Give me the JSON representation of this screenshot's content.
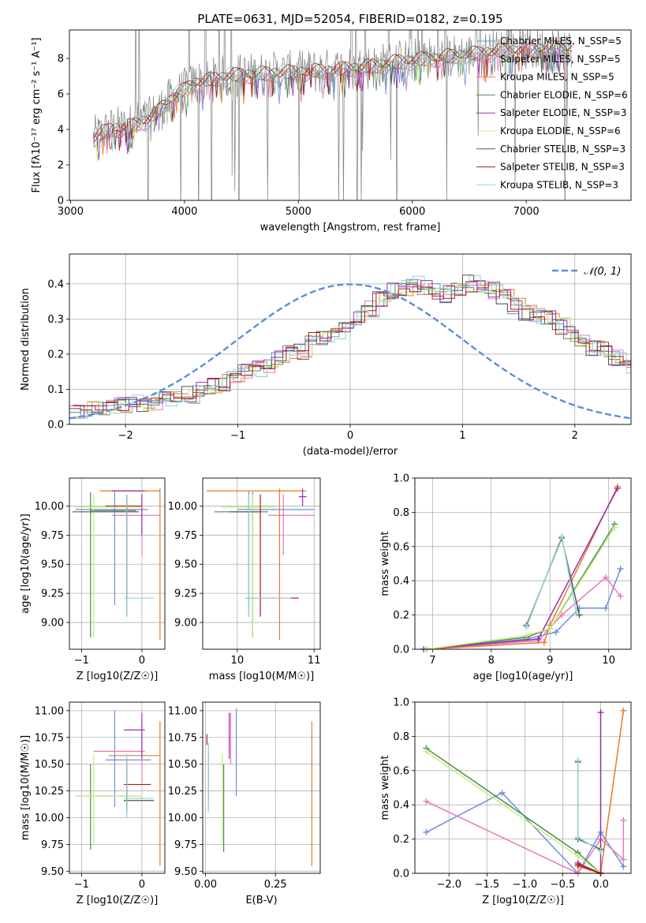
{
  "colors": {
    "Chabrier MILES": "#6d8fde",
    "Salpeter MILES": "#e879b9",
    "Kroupa MILES": "#e87c29",
    "Chabrier ELODIE": "#4f8a55",
    "Salpeter ELODIE": "#9a2cb2",
    "Kroupa ELODIE": "#c6f078",
    "Chabrier STELIB": "#555555",
    "Salpeter STELIB": "#b01818",
    "Kroupa STELIB": "#8fd6d3",
    "gauss": "#5b8fd9",
    "grid": "#b0b0b0",
    "flux_data": "#808080"
  },
  "chart_data": [
    {
      "type": "line",
      "title": "PLATE=0631, MJD=52054, FIBERID=0182, z=0.195",
      "xlabel": "wavelength [Angstrom, rest frame]",
      "ylabel": "Flux [fλ10⁻¹⁷ erg cm⁻² s⁻¹ A⁻¹]",
      "xlim": [
        2990,
        7920
      ],
      "ylim": [
        0,
        9.6
      ],
      "xticks": [
        3000,
        4000,
        5000,
        6000,
        7000
      ],
      "yticks": [
        0,
        2,
        4,
        6,
        8
      ],
      "legend": "top-right",
      "legend_entries": [
        "Chabrier MILES, N_SSP=5",
        "Salpeter MILES, N_SSP=5",
        "Kroupa MILES, N_SSP=5",
        "Chabrier ELODIE, N_SSP=6",
        "Salpeter ELODIE, N_SSP=3",
        "Kroupa ELODIE, N_SSP=6",
        "Chabrier STELIB, N_SSP=3",
        "Salpeter STELIB, N_SSP=3",
        "Kroupa STELIB, N_SSP=3"
      ],
      "continuum": {
        "x": [
          3200,
          3350,
          3500,
          3700,
          3900,
          4100,
          4400,
          4700,
          5000,
          5300,
          5600,
          5900,
          6200,
          6500,
          6800,
          7100,
          7400
        ],
        "y": [
          3.5,
          4.0,
          4.1,
          4.6,
          5.8,
          6.6,
          7.0,
          7.1,
          7.2,
          7.3,
          7.5,
          7.8,
          8.0,
          8.2,
          8.4,
          8.5,
          8.6
        ]
      }
    },
    {
      "type": "histogram",
      "xlabel": "(data-model)/error",
      "ylabel": "Normed distribution",
      "xlim": [
        -2.5,
        2.5
      ],
      "ylim": [
        0,
        0.485
      ],
      "xticks": [
        -2,
        -1,
        0,
        1,
        2
      ],
      "yticks": [
        0.0,
        0.1,
        0.2,
        0.3,
        0.4
      ],
      "legend": "top-right",
      "gauss_label": "𝒩(0, 1)",
      "bin_width": 0.1,
      "base": [
        0.04,
        0.04,
        0.05,
        0.05,
        0.055,
        0.06,
        0.06,
        0.065,
        0.07,
        0.08,
        0.085,
        0.1,
        0.11,
        0.12,
        0.14,
        0.15,
        0.16,
        0.17,
        0.19,
        0.2,
        0.21,
        0.24,
        0.25,
        0.26,
        0.28,
        0.3,
        0.33,
        0.36,
        0.38,
        0.39,
        0.4,
        0.39,
        0.38,
        0.37,
        0.38,
        0.4,
        0.39,
        0.38,
        0.36,
        0.34,
        0.32,
        0.31,
        0.3,
        0.28,
        0.26,
        0.24,
        0.22,
        0.21,
        0.19,
        0.17,
        0.16,
        0.15,
        0.13,
        0.12,
        0.11,
        0.1,
        0.095,
        0.08,
        0.07,
        0.06,
        0.05,
        0.045,
        0.04,
        0.035,
        0.03
      ]
    },
    {
      "type": "scatter",
      "xlabel": "Z [log10(Z/Z☉)]",
      "ylabel": "age  [log10(age/yr)]",
      "xlim": [
        -1.2,
        0.38
      ],
      "ylim": [
        8.77,
        10.24
      ],
      "xticks": [
        -1,
        0
      ],
      "yticks": [
        9.0,
        9.25,
        9.5,
        9.75,
        10.0
      ],
      "error_bars": [
        {
          "series": "Chabrier MILES",
          "x": [
            -1.1,
            0.1
          ],
          "y": [
            9.97,
            9.97
          ],
          "vx": -0.45,
          "vy": [
            9.15,
            10.13
          ]
        },
        {
          "series": "Salpeter MILES",
          "x": [
            -0.5,
            0.3
          ],
          "y": [
            9.92,
            9.92
          ],
          "vx": 0.0,
          "vy": [
            9.58,
            10.1
          ]
        },
        {
          "series": "Kroupa MILES",
          "x": [
            -0.7,
            0.3
          ],
          "y": [
            10.13,
            10.13
          ],
          "vx": 0.3,
          "vy": [
            8.85,
            10.15
          ]
        },
        {
          "series": "Chabrier ELODIE",
          "x": [
            -0.85,
            -0.1
          ],
          "y": [
            9.96,
            9.96
          ],
          "vx": -0.85,
          "vy": [
            8.87,
            10.12
          ]
        },
        {
          "series": "Salpeter ELODIE",
          "x": [
            -0.5,
            0.05
          ],
          "y": [
            10.13,
            10.13
          ],
          "vx": 0.0,
          "vy": [
            9.75,
            10.1
          ]
        },
        {
          "series": "Kroupa ELODIE",
          "x": [
            -1.1,
            0.0
          ],
          "y": [
            9.99,
            9.99
          ],
          "vx": -0.8,
          "vy": [
            8.87,
            10.1
          ]
        },
        {
          "series": "Chabrier STELIB",
          "x": [
            -1.15,
            -0.05
          ],
          "y": [
            9.95,
            9.95
          ],
          "vx": -0.25,
          "vy": [
            9.05,
            10.1
          ]
        },
        {
          "series": "Salpeter STELIB",
          "x": [
            -0.6,
            0.0
          ],
          "y": [
            10.0,
            10.0
          ],
          "vx": -0.25,
          "vy": [
            9.2,
            10.08
          ]
        },
        {
          "series": "Kroupa STELIB",
          "x": [
            -0.3,
            0.2
          ],
          "y": [
            9.21,
            9.21
          ],
          "vx": -0.25,
          "vy": [
            9.05,
            10.1
          ]
        }
      ]
    },
    {
      "type": "scatter",
      "xlabel": "mass [log10(M/M☉)]",
      "ylabel": "",
      "xlim": [
        9.55,
        11.08
      ],
      "ylim": [
        8.77,
        10.24
      ],
      "xticks": [
        10,
        11
      ],
      "yticks": [
        9.0,
        9.25,
        9.5,
        9.75,
        10.0
      ],
      "error_bars": [
        {
          "series": "Chabrier MILES",
          "x": [
            10.0,
            11.0
          ],
          "y": [
            9.97,
            9.97
          ],
          "vx": 10.15,
          "vy": [
            9.15,
            10.13
          ]
        },
        {
          "series": "Salpeter MILES",
          "x": [
            10.4,
            11.0
          ],
          "y": [
            9.92,
            9.92
          ],
          "vx": 10.6,
          "vy": [
            9.58,
            10.1
          ]
        },
        {
          "series": "Kroupa MILES",
          "x": [
            9.6,
            10.9
          ],
          "y": [
            10.13,
            10.13
          ],
          "vx": 10.55,
          "vy": [
            8.85,
            10.15
          ]
        },
        {
          "series": "Chabrier ELODIE",
          "x": [
            9.7,
            10.4
          ],
          "y": [
            9.95,
            9.95
          ],
          "vx": 10.2,
          "vy": [
            8.87,
            10.12
          ]
        },
        {
          "series": "Salpeter ELODIE",
          "x": [
            10.8,
            10.9
          ],
          "y": [
            10.08,
            10.08
          ],
          "vx": 10.85,
          "vy": [
            10.0,
            10.15
          ]
        },
        {
          "series": "Kroupa ELODIE",
          "x": [
            9.8,
            10.5
          ],
          "y": [
            9.99,
            9.99
          ],
          "vx": 10.2,
          "vy": [
            8.87,
            10.1
          ]
        },
        {
          "series": "Chabrier STELIB",
          "x": [
            9.9,
            10.3
          ],
          "y": [
            9.95,
            9.95
          ],
          "vx": 10.15,
          "vy": [
            9.05,
            10.1
          ]
        },
        {
          "series": "Salpeter STELIB",
          "x": [
            10.1,
            10.8
          ],
          "y": [
            9.21,
            9.21
          ],
          "vx": 10.3,
          "vy": [
            9.05,
            10.1
          ]
        },
        {
          "series": "Kroupa STELIB",
          "x": [
            10.1,
            10.7
          ],
          "y": [
            9.21,
            9.21
          ],
          "vx": 10.15,
          "vy": [
            9.05,
            10.1
          ]
        }
      ]
    },
    {
      "type": "line",
      "xlabel": "age  [log10(age/yr)]",
      "ylabel": "mass weight",
      "xlim": [
        6.7,
        10.38
      ],
      "ylim": [
        0,
        1.0
      ],
      "xticks": [
        7,
        8,
        9,
        10
      ],
      "yticks": [
        0.0,
        0.2,
        0.4,
        0.6,
        0.8,
        1.0
      ],
      "series": [
        {
          "name": "Chabrier MILES",
          "x": [
            6.9,
            8.6,
            9.1,
            9.5,
            9.95,
            10.2
          ],
          "y": [
            0.0,
            0.06,
            0.1,
            0.24,
            0.24,
            0.47
          ]
        },
        {
          "name": "Salpeter MILES",
          "x": [
            6.9,
            8.8,
            9.2,
            9.95,
            10.2
          ],
          "y": [
            0.0,
            0.05,
            0.2,
            0.42,
            0.31
          ]
        },
        {
          "name": "Kroupa MILES",
          "x": [
            6.9,
            8.9,
            9.0,
            10.15
          ],
          "y": [
            0.0,
            0.04,
            0.14,
            0.95
          ]
        },
        {
          "name": "Chabrier ELODIE",
          "x": [
            6.9,
            8.6,
            9.0,
            10.1
          ],
          "y": [
            0.0,
            0.07,
            0.12,
            0.73
          ]
        },
        {
          "name": "Salpeter ELODIE",
          "x": [
            6.85,
            8.8,
            10.15
          ],
          "y": [
            0.0,
            0.06,
            0.94
          ]
        },
        {
          "name": "Kroupa ELODIE",
          "x": [
            6.9,
            8.6,
            9.0,
            10.1
          ],
          "y": [
            0.0,
            0.08,
            0.12,
            0.71
          ]
        },
        {
          "name": "Chabrier STELIB",
          "x": [
            8.6,
            9.2,
            9.5
          ],
          "y": [
            0.14,
            0.65,
            0.2
          ]
        },
        {
          "name": "Kroupa STELIB",
          "x": [
            8.6,
            9.2,
            9.45
          ],
          "y": [
            0.13,
            0.66,
            0.21
          ]
        }
      ]
    },
    {
      "type": "scatter",
      "xlabel": "Z [log10(Z/Z☉)]",
      "ylabel": "mass [log10(M/M☉)]",
      "xlim": [
        -1.2,
        0.38
      ],
      "ylim": [
        9.48,
        11.08
      ],
      "xticks": [
        -1,
        0
      ],
      "yticks": [
        9.5,
        9.75,
        10.0,
        10.25,
        10.5,
        10.75,
        11.0
      ],
      "error_bars": [
        {
          "series": "Chabrier MILES",
          "x": [
            -0.6,
            0.15
          ],
          "y": [
            10.54,
            10.54
          ],
          "vx": -0.45,
          "vy": [
            10.1,
            11.0
          ]
        },
        {
          "series": "Salpeter MILES",
          "x": [
            -0.8,
            0.05
          ],
          "y": [
            10.62,
            10.62
          ],
          "vx": 0.0,
          "vy": [
            10.33,
            10.9
          ]
        },
        {
          "series": "Kroupa MILES",
          "x": [
            -0.55,
            0.3
          ],
          "y": [
            10.58,
            10.58
          ],
          "vx": 0.3,
          "vy": [
            9.55,
            10.9
          ]
        },
        {
          "series": "Chabrier ELODIE",
          "x": [
            -1.1,
            -0.1
          ],
          "y": [
            10.2,
            10.2
          ],
          "vx": -0.85,
          "vy": [
            9.7,
            10.5
          ]
        },
        {
          "series": "Salpeter ELODIE",
          "x": [
            -0.3,
            0.05
          ],
          "y": [
            10.82,
            10.82
          ],
          "vx": 0.0,
          "vy": [
            10.55,
            10.98
          ]
        },
        {
          "series": "Kroupa ELODIE",
          "x": [
            -1.1,
            0.0
          ],
          "y": [
            10.2,
            10.2
          ],
          "vx": -0.8,
          "vy": [
            9.75,
            10.6
          ]
        },
        {
          "series": "Chabrier STELIB",
          "x": [
            -0.3,
            0.2
          ],
          "y": [
            10.16,
            10.16
          ],
          "vx": -0.25,
          "vy": [
            10.1,
            10.5
          ]
        },
        {
          "series": "Salpeter STELIB",
          "x": [
            -0.3,
            0.15
          ],
          "y": [
            10.31,
            10.31
          ],
          "vx": -0.25,
          "vy": [
            10.05,
            10.55
          ]
        },
        {
          "series": "Kroupa STELIB",
          "x": [
            -0.3,
            0.2
          ],
          "y": [
            10.18,
            10.18
          ],
          "vx": -0.25,
          "vy": [
            10.0,
            10.6
          ]
        }
      ]
    },
    {
      "type": "scatter",
      "xlabel": "E(B-V)",
      "ylabel": "",
      "xlim": [
        -0.01,
        0.41
      ],
      "ylim": [
        9.48,
        11.08
      ],
      "xticks": [
        0.0,
        0.25
      ],
      "yticks": [
        9.5,
        9.75,
        10.0,
        10.25,
        10.5,
        10.75,
        11.0
      ],
      "error_bars": [
        {
          "series": "Chabrier MILES",
          "vx": 0.11,
          "vy": [
            10.2,
            11.02
          ]
        },
        {
          "series": "Salpeter MILES",
          "vx": 0.09,
          "vy": [
            10.5,
            10.98
          ]
        },
        {
          "series": "Kroupa MILES",
          "vx": 0.38,
          "vy": [
            9.55,
            10.9
          ]
        },
        {
          "series": "Chabrier ELODIE",
          "vx": 0.065,
          "vy": [
            9.68,
            10.5
          ]
        },
        {
          "series": "Salpeter ELODIE",
          "vx": 0.085,
          "vy": [
            10.55,
            10.98
          ]
        },
        {
          "series": "Kroupa ELODIE",
          "vx": 0.06,
          "vy": [
            9.75,
            10.6
          ]
        },
        {
          "series": "Chabrier STELIB",
          "vx": 0.01,
          "vy": [
            10.1,
            10.7
          ]
        },
        {
          "series": "Salpeter STELIB",
          "vx": 0.005,
          "vy": [
            10.68,
            10.78
          ]
        },
        {
          "series": "Kroupa STELIB",
          "vx": 0.01,
          "vy": [
            10.05,
            10.7
          ]
        }
      ]
    },
    {
      "type": "line",
      "xlabel": "Z [log10(Z/Z☉)]",
      "ylabel": "mass weight",
      "xlim": [
        -2.45,
        0.4
      ],
      "ylim": [
        0,
        1.0
      ],
      "xticks": [
        -2.0,
        -1.5,
        -1.0,
        -0.5,
        0.0,
        0.5
      ],
      "yticks": [
        0.0,
        0.2,
        0.4,
        0.6,
        0.8,
        1.0
      ],
      "series": [
        {
          "name": "Chabrier MILES",
          "x": [
            -2.3,
            -1.3,
            -0.3,
            0.0,
            0.3
          ],
          "y": [
            0.24,
            0.47,
            0.0,
            0.24,
            0.04
          ]
        },
        {
          "name": "Salpeter MILES",
          "x": [
            -2.3,
            -0.3,
            0.0,
            0.3,
            0.3
          ],
          "y": [
            0.42,
            0.0,
            0.2,
            0.08,
            0.31
          ]
        },
        {
          "name": "Kroupa MILES",
          "x": [
            -0.3,
            0.0,
            0.3
          ],
          "y": [
            0.04,
            0.0,
            0.95
          ]
        },
        {
          "name": "Chabrier ELODIE",
          "x": [
            -2.3,
            -0.3,
            0.0
          ],
          "y": [
            0.73,
            0.12,
            0.0
          ]
        },
        {
          "name": "Salpeter ELODIE",
          "x": [
            -0.3,
            0.0,
            0.0
          ],
          "y": [
            0.06,
            0.0,
            0.94
          ]
        },
        {
          "name": "Kroupa ELODIE",
          "x": [
            -2.3,
            -0.3,
            0.0
          ],
          "y": [
            0.71,
            0.1,
            0.0
          ]
        },
        {
          "name": "Chabrier STELIB",
          "x": [
            -0.3,
            -0.3,
            0.0
          ],
          "y": [
            0.65,
            0.2,
            0.14
          ]
        },
        {
          "name": "Salpeter STELIB",
          "x": [
            -0.3,
            0.0
          ],
          "y": [
            0.05,
            0.0
          ]
        },
        {
          "name": "Kroupa STELIB",
          "x": [
            -0.3,
            -0.3,
            0.0
          ],
          "y": [
            0.66,
            0.21,
            0.13
          ]
        }
      ]
    }
  ]
}
